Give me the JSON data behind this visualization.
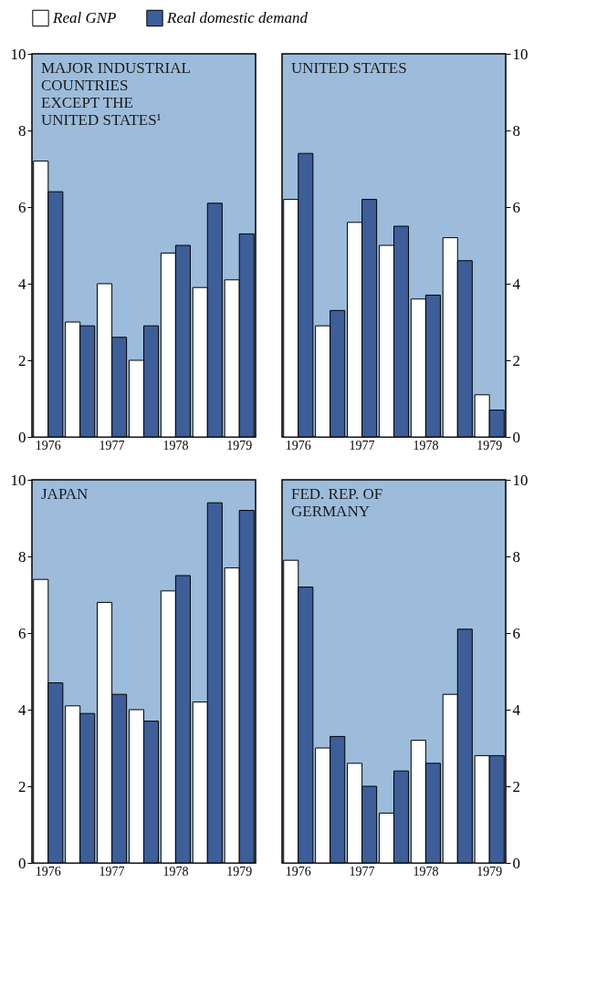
{
  "chart_data": [
    {
      "type": "bar",
      "title": "MAJOR INDUSTRIAL\nCOUNTRIES\nEXCEPT THE\nUNITED STATES¹",
      "categories": [
        "1976",
        null,
        "1977",
        null,
        "1978",
        null,
        "1979"
      ],
      "ylim": [
        0,
        10
      ],
      "yticks": [
        0,
        2,
        4,
        6,
        8,
        10
      ],
      "legend": "top",
      "series": [
        {
          "name": "Real GNP",
          "color": "#ffffff",
          "values": [
            7.2,
            3.0,
            4.0,
            2.0,
            4.8,
            3.9,
            4.1
          ]
        },
        {
          "name": "Real domestic demand",
          "color": "#3d5e98",
          "values": [
            6.4,
            2.9,
            2.6,
            2.9,
            5.0,
            6.1,
            5.3
          ]
        }
      ]
    },
    {
      "type": "bar",
      "title": "UNITED STATES",
      "categories": [
        "1976",
        null,
        "1977",
        null,
        "1978",
        null,
        "1979"
      ],
      "ylim": [
        0,
        10
      ],
      "yticks": [
        0,
        2,
        4,
        6,
        8,
        10
      ],
      "series": [
        {
          "color": "#ffffff",
          "values": [
            6.2,
            2.9,
            5.6,
            5.0,
            3.6,
            5.2,
            1.1
          ]
        },
        {
          "color": "#3d5e98",
          "values": [
            7.4,
            3.3,
            6.2,
            5.5,
            3.7,
            4.6,
            0.7
          ]
        }
      ]
    },
    {
      "type": "bar",
      "title": "JAPAN",
      "categories": [
        "1976",
        null,
        "1977",
        null,
        "1978",
        null,
        "1979"
      ],
      "ylim": [
        0,
        10
      ],
      "yticks": [
        0,
        2,
        4,
        6,
        8,
        10
      ],
      "series": [
        {
          "color": "#ffffff",
          "values": [
            7.4,
            4.1,
            6.8,
            4.0,
            7.1,
            4.2,
            7.7
          ]
        },
        {
          "color": "#3d5e98",
          "values": [
            4.7,
            3.9,
            4.4,
            3.7,
            7.5,
            9.4,
            9.2
          ]
        }
      ]
    },
    {
      "type": "bar",
      "title": "FED. REP. OF\nGERMANY",
      "categories": [
        "1976",
        null,
        "1977",
        null,
        "1978",
        null,
        "1979"
      ],
      "ylim": [
        0,
        10
      ],
      "yticks": [
        0,
        2,
        4,
        6,
        8,
        10
      ],
      "series": [
        {
          "color": "#ffffff",
          "values": [
            7.9,
            3.0,
            2.6,
            1.3,
            3.2,
            4.4,
            2.8
          ]
        },
        {
          "color": "#3d5e98",
          "values": [
            7.2,
            3.3,
            2.0,
            2.4,
            2.6,
            6.1,
            2.8
          ]
        }
      ]
    }
  ]
}
